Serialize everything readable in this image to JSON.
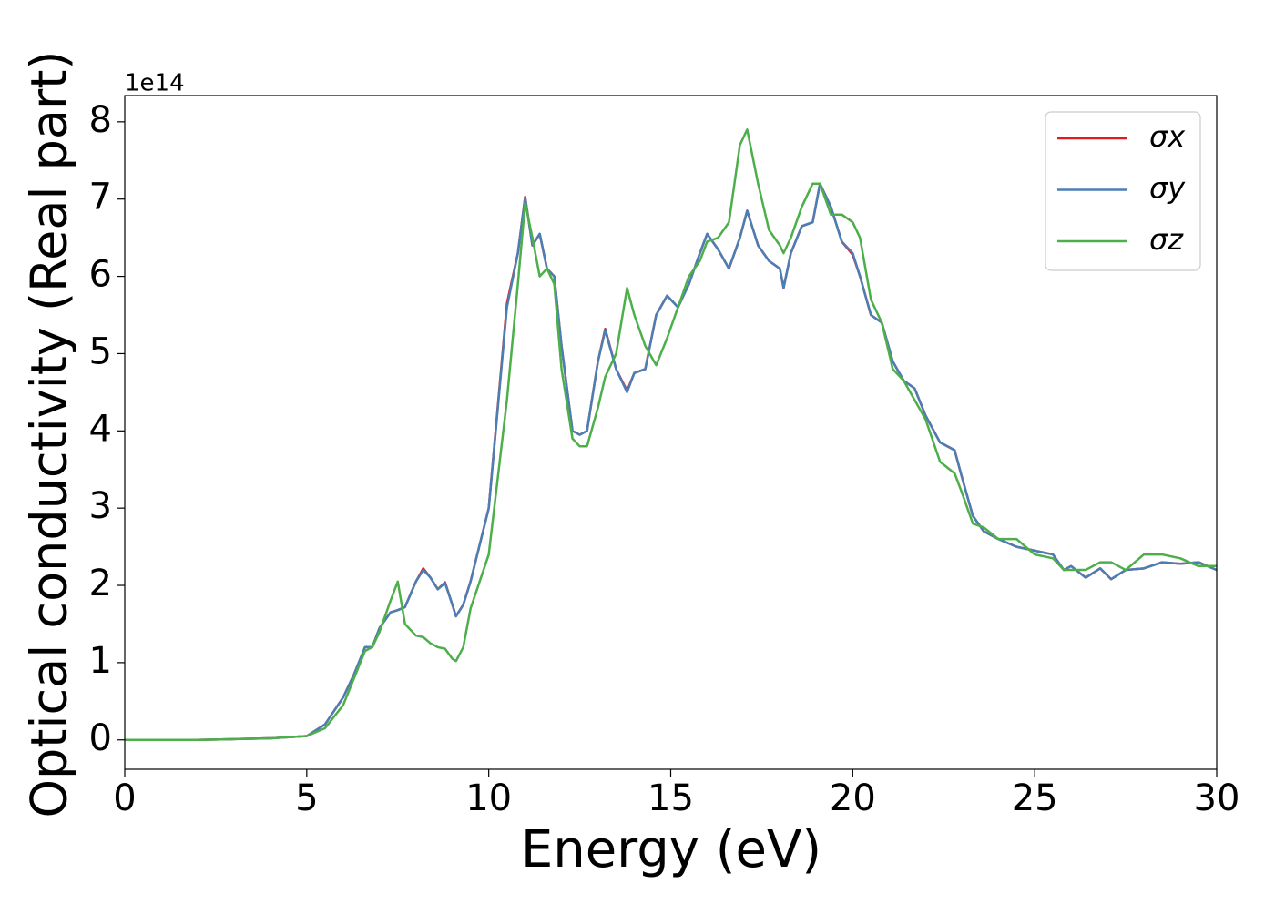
{
  "chart_data": {
    "type": "line",
    "xlabel": "Energy (eV)",
    "ylabel": "Optical conductivity (Real part)",
    "y_offset_text": "1e14",
    "xlim": [
      0,
      30
    ],
    "xticks": [
      0,
      5,
      10,
      15,
      20,
      25,
      30
    ],
    "ylim": [
      -0.38,
      8.34
    ],
    "yticks": [
      0,
      1,
      2,
      3,
      4,
      5,
      6,
      7,
      8
    ],
    "legend": "upper right",
    "x": [
      0,
      1,
      2,
      3,
      4,
      5,
      5.5,
      6,
      6.3,
      6.6,
      6.8,
      7,
      7.3,
      7.5,
      7.7,
      8,
      8.2,
      8.4,
      8.6,
      8.8,
      9,
      9.1,
      9.3,
      9.5,
      10,
      10.5,
      10.8,
      11,
      11.2,
      11.4,
      11.6,
      11.8,
      12,
      12.3,
      12.5,
      12.7,
      13,
      13.2,
      13.5,
      13.8,
      14,
      14.3,
      14.6,
      14.9,
      15.2,
      15.5,
      15.8,
      16,
      16.3,
      16.6,
      16.9,
      17.1,
      17.4,
      17.7,
      18,
      18.1,
      18.3,
      18.6,
      18.9,
      19.1,
      19.4,
      19.7,
      20,
      20.2,
      20.5,
      20.8,
      21.1,
      21.4,
      21.7,
      22,
      22.4,
      22.8,
      23,
      23.3,
      23.6,
      24,
      24.5,
      25,
      25.5,
      25.8,
      26,
      26.4,
      26.8,
      27.1,
      27.5,
      28,
      28.5,
      29,
      29.5,
      30
    ],
    "series": [
      {
        "name": "σx",
        "color": "#e41a1c",
        "values": [
          0,
          0,
          0,
          0.01,
          0.02,
          0.05,
          0.2,
          0.55,
          0.85,
          1.2,
          1.2,
          1.45,
          1.65,
          1.68,
          1.72,
          2.05,
          2.22,
          2.1,
          1.95,
          2.04,
          1.75,
          1.6,
          1.75,
          2.05,
          3.0,
          5.65,
          6.3,
          7.03,
          6.4,
          6.55,
          6.1,
          6.0,
          5.1,
          4.0,
          3.95,
          4.0,
          4.9,
          5.32,
          4.8,
          4.52,
          4.75,
          4.8,
          5.5,
          5.75,
          5.6,
          5.9,
          6.3,
          6.55,
          6.35,
          6.1,
          6.5,
          6.85,
          6.4,
          6.2,
          6.1,
          5.85,
          6.3,
          6.65,
          6.7,
          7.2,
          6.9,
          6.45,
          6.28,
          6.0,
          5.5,
          5.4,
          4.9,
          4.65,
          4.55,
          4.2,
          3.85,
          3.75,
          3.4,
          2.9,
          2.7,
          2.6,
          2.5,
          2.45,
          2.4,
          2.2,
          2.25,
          2.1,
          2.22,
          2.08,
          2.2,
          2.22,
          2.3,
          2.28,
          2.3,
          2.2
        ]
      },
      {
        "name": "σy",
        "color": "#4a7fb5",
        "values": [
          0,
          0,
          0,
          0.01,
          0.02,
          0.05,
          0.2,
          0.55,
          0.85,
          1.2,
          1.2,
          1.45,
          1.65,
          1.68,
          1.72,
          2.05,
          2.2,
          2.1,
          1.95,
          2.03,
          1.75,
          1.6,
          1.75,
          2.05,
          3.0,
          5.6,
          6.3,
          7.02,
          6.4,
          6.55,
          6.1,
          6.0,
          5.1,
          4.0,
          3.95,
          4.0,
          4.9,
          5.3,
          4.8,
          4.5,
          4.75,
          4.8,
          5.5,
          5.75,
          5.6,
          5.9,
          6.3,
          6.55,
          6.35,
          6.1,
          6.5,
          6.85,
          6.4,
          6.2,
          6.1,
          5.85,
          6.3,
          6.65,
          6.7,
          7.2,
          6.9,
          6.45,
          6.3,
          6.0,
          5.5,
          5.4,
          4.9,
          4.65,
          4.55,
          4.2,
          3.85,
          3.75,
          3.4,
          2.9,
          2.7,
          2.6,
          2.5,
          2.45,
          2.4,
          2.2,
          2.25,
          2.1,
          2.22,
          2.08,
          2.2,
          2.22,
          2.3,
          2.28,
          2.3,
          2.2
        ]
      },
      {
        "name": "σz",
        "color": "#4daf4a",
        "values": [
          0,
          0,
          0,
          0.01,
          0.02,
          0.05,
          0.15,
          0.45,
          0.8,
          1.15,
          1.2,
          1.4,
          1.8,
          2.05,
          1.5,
          1.35,
          1.33,
          1.25,
          1.2,
          1.18,
          1.05,
          1.02,
          1.2,
          1.7,
          2.4,
          4.4,
          5.9,
          6.95,
          6.5,
          6.0,
          6.1,
          5.9,
          4.8,
          3.9,
          3.8,
          3.8,
          4.3,
          4.7,
          5.0,
          5.85,
          5.5,
          5.1,
          4.85,
          5.2,
          5.6,
          6.0,
          6.2,
          6.45,
          6.5,
          6.7,
          7.7,
          7.9,
          7.2,
          6.6,
          6.4,
          6.3,
          6.5,
          6.9,
          7.2,
          7.2,
          6.8,
          6.8,
          6.7,
          6.5,
          5.7,
          5.4,
          4.8,
          4.65,
          4.4,
          4.15,
          3.6,
          3.45,
          3.2,
          2.8,
          2.75,
          2.6,
          2.6,
          2.4,
          2.35,
          2.2,
          2.2,
          2.2,
          2.3,
          2.3,
          2.2,
          2.4,
          2.4,
          2.35,
          2.25,
          2.25
        ]
      }
    ]
  }
}
